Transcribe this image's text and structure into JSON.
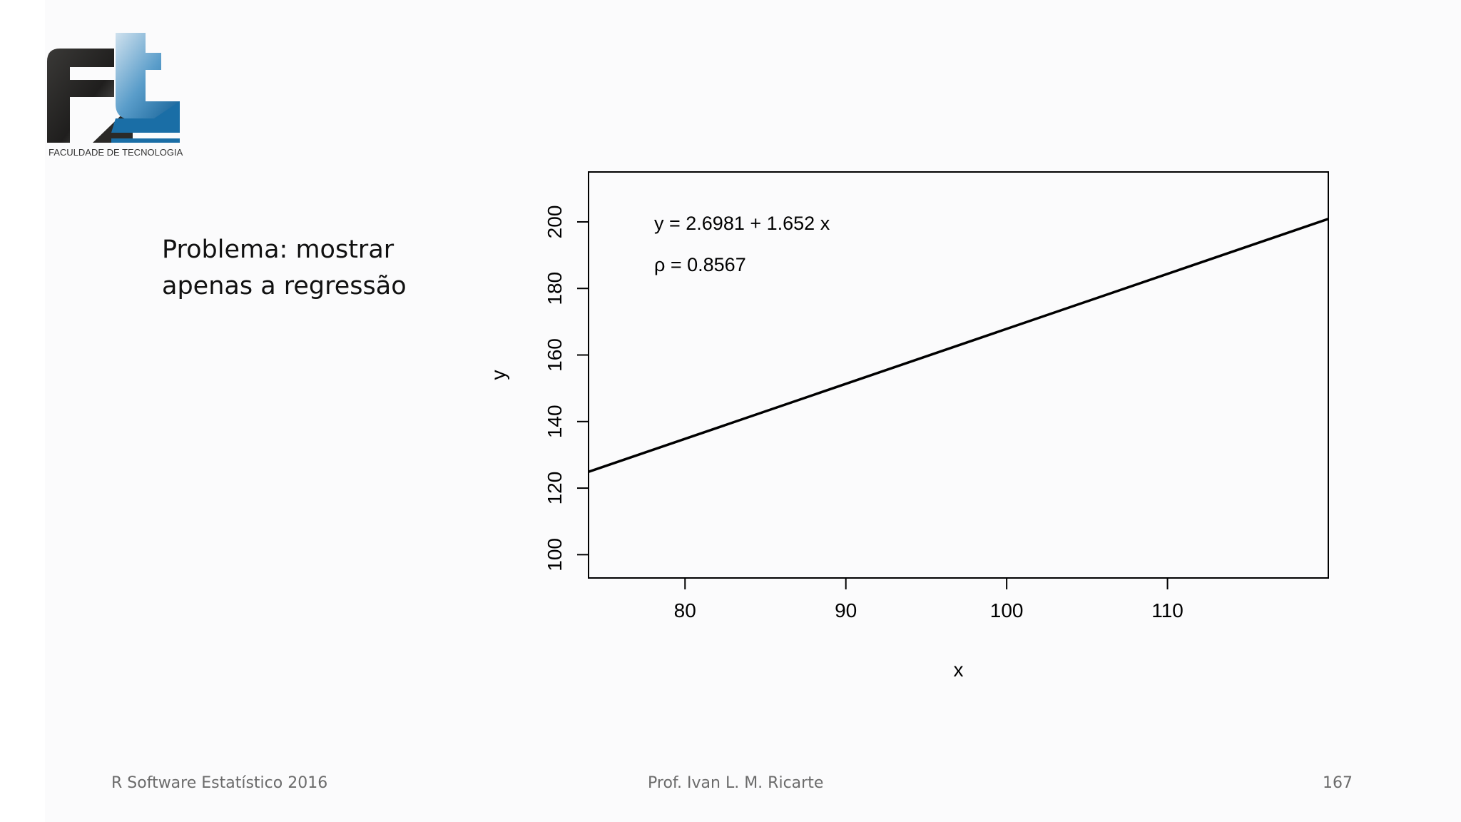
{
  "logo": {
    "name": "ft-logo-icon",
    "caption": "FACULDADE DE TECNOLOGIA",
    "colors": {
      "dark": "#2e2d2b",
      "blue": "#1a6ea6",
      "light_blue": "#8fb9d5"
    }
  },
  "slide": {
    "text_lines": [
      "Problema: mostrar",
      "apenas a regressão"
    ]
  },
  "footer": {
    "left": "R Software Estatístico 2016",
    "center": "Prof. Ivan L. M. Ricarte",
    "right": "167"
  },
  "chart_data": {
    "type": "line",
    "xlabel": "x",
    "ylabel": "y",
    "xlim": [
      74,
      120
    ],
    "ylim": [
      93,
      215
    ],
    "x_ticks": [
      80,
      90,
      100,
      110
    ],
    "y_ticks": [
      100,
      120,
      140,
      160,
      180,
      200
    ],
    "grid": false,
    "series": [
      {
        "x": [
          74,
          120
        ],
        "y": [
          124.9,
          200.9
        ]
      }
    ],
    "annotations": [
      "y = 2.6981 + 1.652 x",
      "ρ = 0.8567"
    ],
    "colors": {
      "line": "#000000",
      "axis": "#000000"
    }
  }
}
